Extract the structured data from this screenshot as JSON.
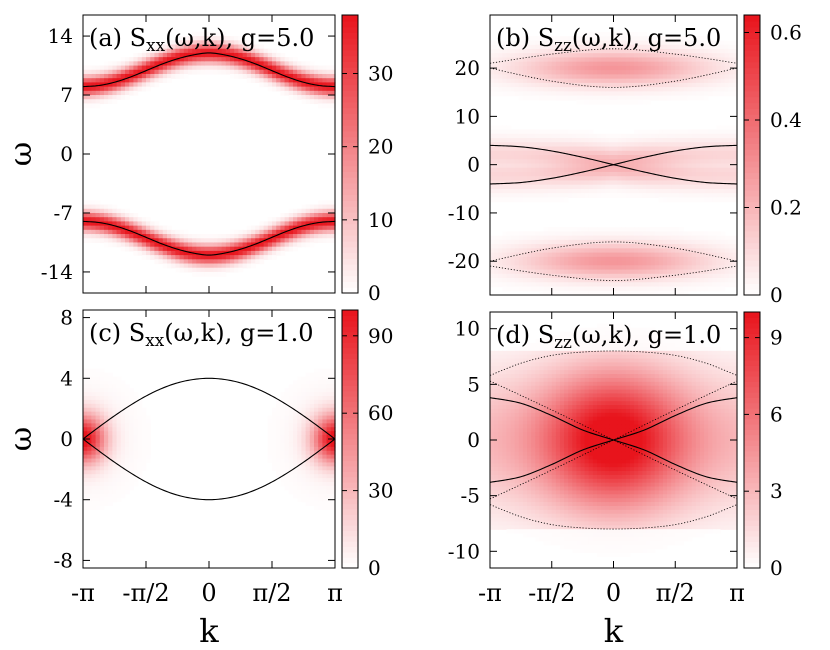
{
  "chart_data": [
    {
      "type": "heatmap",
      "panel_label": "(a)",
      "quantity": "S",
      "quantity_sub": "xx",
      "quantity_args": "(ω,k), g=5.0",
      "xlabel": "",
      "ylabel": "ω",
      "xlim": [
        -3.1416,
        3.1416
      ],
      "ylim": [
        -16.5,
        16.5
      ],
      "xticks": [],
      "yticks": [
        {
          "v": -14,
          "label": "-14"
        },
        {
          "v": -7,
          "label": "-7"
        },
        {
          "v": 0,
          "label": "0"
        },
        {
          "v": 7,
          "label": "7"
        },
        {
          "v": 14,
          "label": "14"
        }
      ],
      "colorbar": {
        "min": 0,
        "max": 38,
        "ticks": [
          {
            "v": 0,
            "label": "0"
          },
          {
            "v": 10,
            "label": "10"
          },
          {
            "v": 20,
            "label": "20"
          },
          {
            "v": 30,
            "label": "30"
          }
        ]
      },
      "curves": [
        {
          "style": "solid",
          "points": [
            [
              -3.1416,
              8.0
            ],
            [
              -2.7489,
              8.13
            ],
            [
              -2.3562,
              8.52
            ],
            [
              -1.9635,
              9.13
            ],
            [
              -1.5708,
              9.89
            ],
            [
              -1.1781,
              10.66
            ],
            [
              -0.7854,
              11.3
            ],
            [
              -0.3927,
              11.76
            ],
            [
              0,
              12.0
            ],
            [
              0.3927,
              11.76
            ],
            [
              0.7854,
              11.3
            ],
            [
              1.1781,
              10.66
            ],
            [
              1.5708,
              9.89
            ],
            [
              1.9635,
              9.13
            ],
            [
              2.3562,
              8.52
            ],
            [
              2.7489,
              8.13
            ],
            [
              3.1416,
              8.0
            ]
          ]
        },
        {
          "style": "solid",
          "points": [
            [
              -3.1416,
              -8.0
            ],
            [
              -2.7489,
              -8.13
            ],
            [
              -2.3562,
              -8.52
            ],
            [
              -1.9635,
              -9.13
            ],
            [
              -1.5708,
              -9.89
            ],
            [
              -1.1781,
              -10.66
            ],
            [
              -0.7854,
              -11.3
            ],
            [
              -0.3927,
              -11.76
            ],
            [
              0,
              -12.0
            ],
            [
              0.3927,
              -11.76
            ],
            [
              0.7854,
              -11.3
            ],
            [
              1.1781,
              -10.66
            ],
            [
              1.5708,
              -9.89
            ],
            [
              1.9635,
              -9.13
            ],
            [
              2.3562,
              -8.52
            ],
            [
              2.7489,
              -8.13
            ],
            [
              3.1416,
              -8.0
            ]
          ]
        }
      ],
      "intensity_model": "band-following: peak along the solid curves, width 1.0"
    },
    {
      "type": "heatmap",
      "panel_label": "(b)",
      "quantity": "S",
      "quantity_sub": "zz",
      "quantity_args": "(ω,k), g=5.0",
      "xlabel": "",
      "ylabel": "",
      "xlim": [
        -3.1416,
        3.1416
      ],
      "ylim": [
        -27,
        31
      ],
      "xticks": [],
      "yticks": [
        {
          "v": -20,
          "label": "-20"
        },
        {
          "v": -10,
          "label": "-10"
        },
        {
          "v": 0,
          "label": "0"
        },
        {
          "v": 10,
          "label": "10"
        },
        {
          "v": 20,
          "label": "20"
        }
      ],
      "colorbar": {
        "min": 0,
        "max": 0.64,
        "ticks": [
          {
            "v": 0,
            "label": "0"
          },
          {
            "v": 0.2,
            "label": "0.2"
          },
          {
            "v": 0.4,
            "label": "0.4"
          },
          {
            "v": 0.6,
            "label": "0.6"
          }
        ]
      },
      "curves": [
        {
          "style": "solid",
          "points": [
            [
              -3.1416,
              4.0
            ],
            [
              -2.3562,
              3.7
            ],
            [
              -1.5708,
              2.83
            ],
            [
              -0.7854,
              1.53
            ],
            [
              0,
              0
            ],
            [
              0.7854,
              -1.53
            ],
            [
              1.5708,
              -2.83
            ],
            [
              2.3562,
              -3.7
            ],
            [
              3.1416,
              -4.0
            ]
          ]
        },
        {
          "style": "solid",
          "points": [
            [
              -3.1416,
              -4.0
            ],
            [
              -2.3562,
              -3.7
            ],
            [
              -1.5708,
              -2.83
            ],
            [
              -0.7854,
              -1.53
            ],
            [
              0,
              0
            ],
            [
              0.7854,
              1.53
            ],
            [
              1.5708,
              2.83
            ],
            [
              2.3562,
              3.7
            ],
            [
              3.1416,
              4.0
            ]
          ]
        },
        {
          "style": "dotted",
          "points": [
            [
              -3.1416,
              21
            ],
            [
              -1.5708,
              22.9
            ],
            [
              0,
              24
            ],
            [
              1.5708,
              22.9
            ],
            [
              3.1416,
              21
            ]
          ]
        },
        {
          "style": "dotted",
          "points": [
            [
              -3.1416,
              20
            ],
            [
              -1.5708,
              17.3
            ],
            [
              0,
              16
            ],
            [
              1.5708,
              17.3
            ],
            [
              3.1416,
              20
            ]
          ]
        },
        {
          "style": "dotted",
          "points": [
            [
              -3.1416,
              -20
            ],
            [
              -1.5708,
              -17.3
            ],
            [
              0,
              -16
            ],
            [
              1.5708,
              -17.3
            ],
            [
              3.1416,
              -20
            ]
          ]
        },
        {
          "style": "dotted",
          "points": [
            [
              -3.1416,
              -21
            ],
            [
              -1.5708,
              -22.9
            ],
            [
              0,
              -24
            ],
            [
              1.5708,
              -22.9
            ],
            [
              3.1416,
              -21
            ]
          ]
        }
      ],
      "intensity_model": "continua near ±20 and a band near 0"
    },
    {
      "type": "heatmap",
      "panel_label": "(c)",
      "quantity": "S",
      "quantity_sub": "xx",
      "quantity_args": "(ω,k), g=1.0",
      "xlabel": "k",
      "ylabel": "ω",
      "xlim": [
        -3.1416,
        3.1416
      ],
      "ylim": [
        -8.5,
        8.5
      ],
      "xticks": [
        {
          "v": -3.1416,
          "label": "-π"
        },
        {
          "v": -1.5708,
          "label": "-π/2"
        },
        {
          "v": 0,
          "label": "0"
        },
        {
          "v": 1.5708,
          "label": "π/2"
        },
        {
          "v": 3.1416,
          "label": "π"
        }
      ],
      "yticks": [
        {
          "v": -8,
          "label": "-8"
        },
        {
          "v": -4,
          "label": "-4"
        },
        {
          "v": 0,
          "label": "0"
        },
        {
          "v": 4,
          "label": "4"
        },
        {
          "v": 8,
          "label": "8"
        }
      ],
      "colorbar": {
        "min": 0,
        "max": 100,
        "ticks": [
          {
            "v": 0,
            "label": "0"
          },
          {
            "v": 30,
            "label": "30"
          },
          {
            "v": 60,
            "label": "60"
          },
          {
            "v": 90,
            "label": "90"
          }
        ]
      },
      "curves": [
        {
          "style": "solid",
          "points": [
            [
              -3.1416,
              0
            ],
            [
              -2.7489,
              0.78
            ],
            [
              -2.3562,
              1.53
            ],
            [
              -1.9635,
              2.22
            ],
            [
              -1.5708,
              2.83
            ],
            [
              -1.1781,
              3.33
            ],
            [
              -0.7854,
              3.7
            ],
            [
              -0.3927,
              3.92
            ],
            [
              0,
              4.0
            ],
            [
              0.3927,
              3.92
            ],
            [
              0.7854,
              3.7
            ],
            [
              1.1781,
              3.33
            ],
            [
              1.5708,
              2.83
            ],
            [
              1.9635,
              2.22
            ],
            [
              2.3562,
              1.53
            ],
            [
              2.7489,
              0.78
            ],
            [
              3.1416,
              0
            ]
          ]
        },
        {
          "style": "solid",
          "points": [
            [
              -3.1416,
              0
            ],
            [
              -2.7489,
              -0.78
            ],
            [
              -2.3562,
              -1.53
            ],
            [
              -1.9635,
              -2.22
            ],
            [
              -1.5708,
              -2.83
            ],
            [
              -1.1781,
              -3.33
            ],
            [
              -0.7854,
              -3.7
            ],
            [
              -0.3927,
              -3.92
            ],
            [
              0,
              -4.0
            ],
            [
              0.3927,
              -3.92
            ],
            [
              0.7854,
              -3.7
            ],
            [
              1.1781,
              -3.33
            ],
            [
              1.5708,
              -2.83
            ],
            [
              1.9635,
              -2.22
            ],
            [
              2.3562,
              -1.53
            ],
            [
              2.7489,
              -0.78
            ],
            [
              3.1416,
              0
            ]
          ]
        }
      ],
      "intensity_model": "peaked at k=±π, ω=0"
    },
    {
      "type": "heatmap",
      "panel_label": "(d)",
      "quantity": "S",
      "quantity_sub": "zz",
      "quantity_args": "(ω,k), g=1.0",
      "xlabel": "k",
      "ylabel": "",
      "xlim": [
        -3.1416,
        3.1416
      ],
      "ylim": [
        -11.5,
        11.5
      ],
      "xticks": [
        {
          "v": -3.1416,
          "label": "-π"
        },
        {
          "v": -1.5708,
          "label": "-π/2"
        },
        {
          "v": 0,
          "label": "0"
        },
        {
          "v": 1.5708,
          "label": "π/2"
        },
        {
          "v": 3.1416,
          "label": "π"
        }
      ],
      "yticks": [
        {
          "v": -10,
          "label": "-10"
        },
        {
          "v": -5,
          "label": "-5"
        },
        {
          "v": 0,
          "label": "0"
        },
        {
          "v": 5,
          "label": "5"
        },
        {
          "v": 10,
          "label": "10"
        }
      ],
      "colorbar": {
        "min": 0,
        "max": 10,
        "ticks": [
          {
            "v": 0,
            "label": "0"
          },
          {
            "v": 3,
            "label": "3"
          },
          {
            "v": 6,
            "label": "6"
          },
          {
            "v": 9,
            "label": "9"
          }
        ]
      },
      "curves": [
        {
          "style": "solid",
          "points": [
            [
              -3.1416,
              3.8
            ],
            [
              -2.3562,
              3.3
            ],
            [
              -1.5708,
              2.2
            ],
            [
              -0.7854,
              0.9
            ],
            [
              0,
              0
            ],
            [
              0.7854,
              -0.9
            ],
            [
              1.5708,
              -2.2
            ],
            [
              2.3562,
              -3.3
            ],
            [
              3.1416,
              -3.8
            ]
          ]
        },
        {
          "style": "solid",
          "points": [
            [
              -3.1416,
              -3.8
            ],
            [
              -2.3562,
              -3.3
            ],
            [
              -1.5708,
              -2.2
            ],
            [
              -0.7854,
              -0.9
            ],
            [
              0,
              0
            ],
            [
              0.7854,
              0.9
            ],
            [
              1.5708,
              2.2
            ],
            [
              2.3562,
              3.3
            ],
            [
              3.1416,
              3.8
            ]
          ]
        },
        {
          "style": "dotted",
          "points": [
            [
              -3.1416,
              5.8
            ],
            [
              -2.3562,
              6.9
            ],
            [
              -1.5708,
              7.6
            ],
            [
              -0.7854,
              7.9
            ],
            [
              0,
              8.0
            ],
            [
              0.7854,
              7.9
            ],
            [
              1.5708,
              7.6
            ],
            [
              2.3562,
              6.9
            ],
            [
              3.1416,
              5.8
            ]
          ]
        },
        {
          "style": "dotted",
          "points": [
            [
              -3.1416,
              -5.8
            ],
            [
              -2.3562,
              -6.9
            ],
            [
              -1.5708,
              -7.6
            ],
            [
              -0.7854,
              -7.9
            ],
            [
              0,
              -8.0
            ],
            [
              0.7854,
              -7.9
            ],
            [
              1.5708,
              -7.6
            ],
            [
              2.3562,
              -6.9
            ],
            [
              3.1416,
              -5.8
            ]
          ]
        },
        {
          "style": "dotted",
          "points": [
            [
              -3.1416,
              -5.3
            ],
            [
              -1.5708,
              -2.7
            ],
            [
              0,
              0
            ],
            [
              1.5708,
              2.7
            ],
            [
              3.1416,
              5.3
            ]
          ]
        },
        {
          "style": "dotted",
          "points": [
            [
              -3.1416,
              5.3
            ],
            [
              -1.5708,
              2.7
            ],
            [
              0,
              0
            ],
            [
              1.5708,
              -2.7
            ],
            [
              3.1416,
              -5.3
            ]
          ]
        }
      ],
      "intensity_model": "broad continuum centred at k=0, ω=0"
    }
  ],
  "colors": {
    "heat_max": "#e8141c",
    "heat_min": "#ffffff",
    "line": "#000000"
  }
}
